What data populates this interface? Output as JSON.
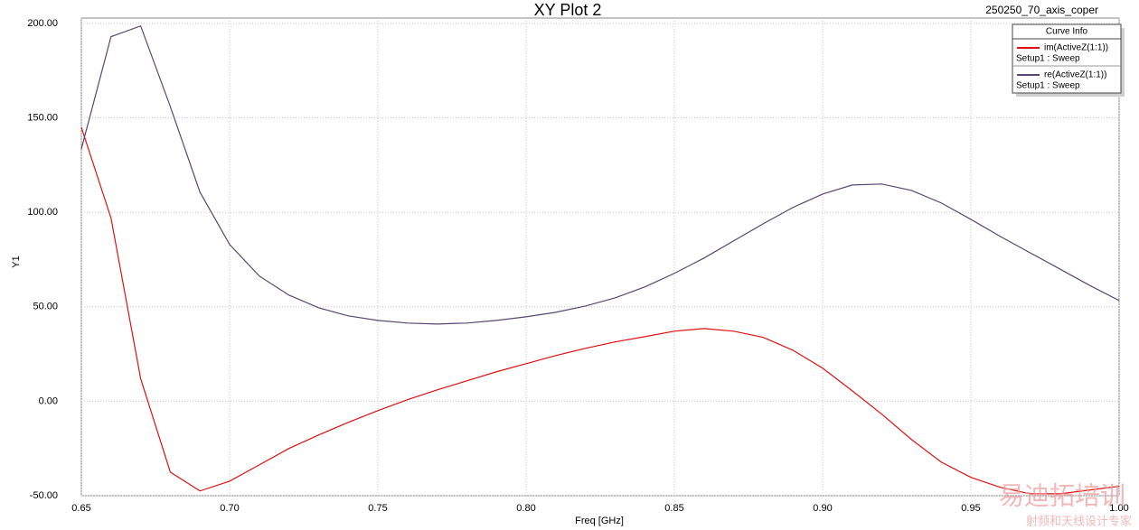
{
  "chart_data": {
    "type": "line",
    "title": "XY Plot 2",
    "design_name": "250250_70_axis_coper",
    "x_label": "Freq [GHz]",
    "y_label": "Y1",
    "legend_title": "Curve Info",
    "legend_position": "upper right",
    "x": [
      0.65,
      0.66,
      0.67,
      0.68,
      0.69,
      0.7,
      0.71,
      0.72,
      0.73,
      0.74,
      0.75,
      0.76,
      0.77,
      0.78,
      0.79,
      0.8,
      0.81,
      0.82,
      0.83,
      0.84,
      0.85,
      0.86,
      0.87,
      0.88,
      0.89,
      0.9,
      0.91,
      0.92,
      0.93,
      0.94,
      0.95,
      0.96,
      0.97,
      0.98,
      0.99,
      1.0
    ],
    "series": [
      {
        "name": "im(ActiveZ(1:1))",
        "solution": "Setup1 : Sweep",
        "color": "#e01010",
        "values": [
          145,
          97,
          12,
          -37.5,
          -47.5,
          -42.3,
          -33.7,
          -25,
          -17.9,
          -11.2,
          -5,
          0.8,
          6,
          10.8,
          15.6,
          19.9,
          24.2,
          28,
          31.4,
          34.2,
          37.1,
          38.5,
          37.1,
          33.8,
          27,
          17.5,
          5.5,
          -6.9,
          -20.3,
          -32.2,
          -40.3,
          -45.6,
          -49,
          -49,
          -47,
          -45
        ]
      },
      {
        "name": "re(ActiveZ(1:1))",
        "solution": "Setup1 : Sweep",
        "color": "#5a4670",
        "values": [
          133.6,
          193,
          198.7,
          156,
          110.7,
          83,
          66.3,
          56.2,
          49.5,
          45.2,
          42.8,
          41.4,
          40.9,
          41.4,
          42.8,
          44.7,
          47.1,
          50.4,
          54.7,
          60.5,
          67.7,
          75.8,
          84.9,
          94,
          102.6,
          109.7,
          114.5,
          115,
          111.6,
          105,
          96.3,
          87.2,
          78.6,
          70,
          61.4,
          53.3
        ]
      }
    ],
    "xlim": [
      0.65,
      1.0
    ],
    "ylim": [
      -50,
      200
    ],
    "xticks": [
      0.65,
      {
        "value": 0.7,
        "label": "0.70"
      },
      0.75,
      {
        "value": 0.8,
        "label": "0.80"
      },
      0.85,
      {
        "value": 0.9,
        "label": "0.90"
      },
      0.95,
      {
        "value": 1.0,
        "label": "1.00"
      }
    ],
    "yticks": [
      {
        "value": -50,
        "label": "-50.00"
      },
      {
        "value": 0,
        "label": "0.00"
      },
      {
        "value": 50,
        "label": "50.00"
      },
      {
        "value": 100,
        "label": "100.00"
      },
      {
        "value": 150,
        "label": "150.00"
      },
      {
        "value": 200,
        "label": "200.00"
      }
    ],
    "grid": true,
    "watermark": "易迪拓培训",
    "watermark_subtitle": "射频和天线设计专家"
  }
}
